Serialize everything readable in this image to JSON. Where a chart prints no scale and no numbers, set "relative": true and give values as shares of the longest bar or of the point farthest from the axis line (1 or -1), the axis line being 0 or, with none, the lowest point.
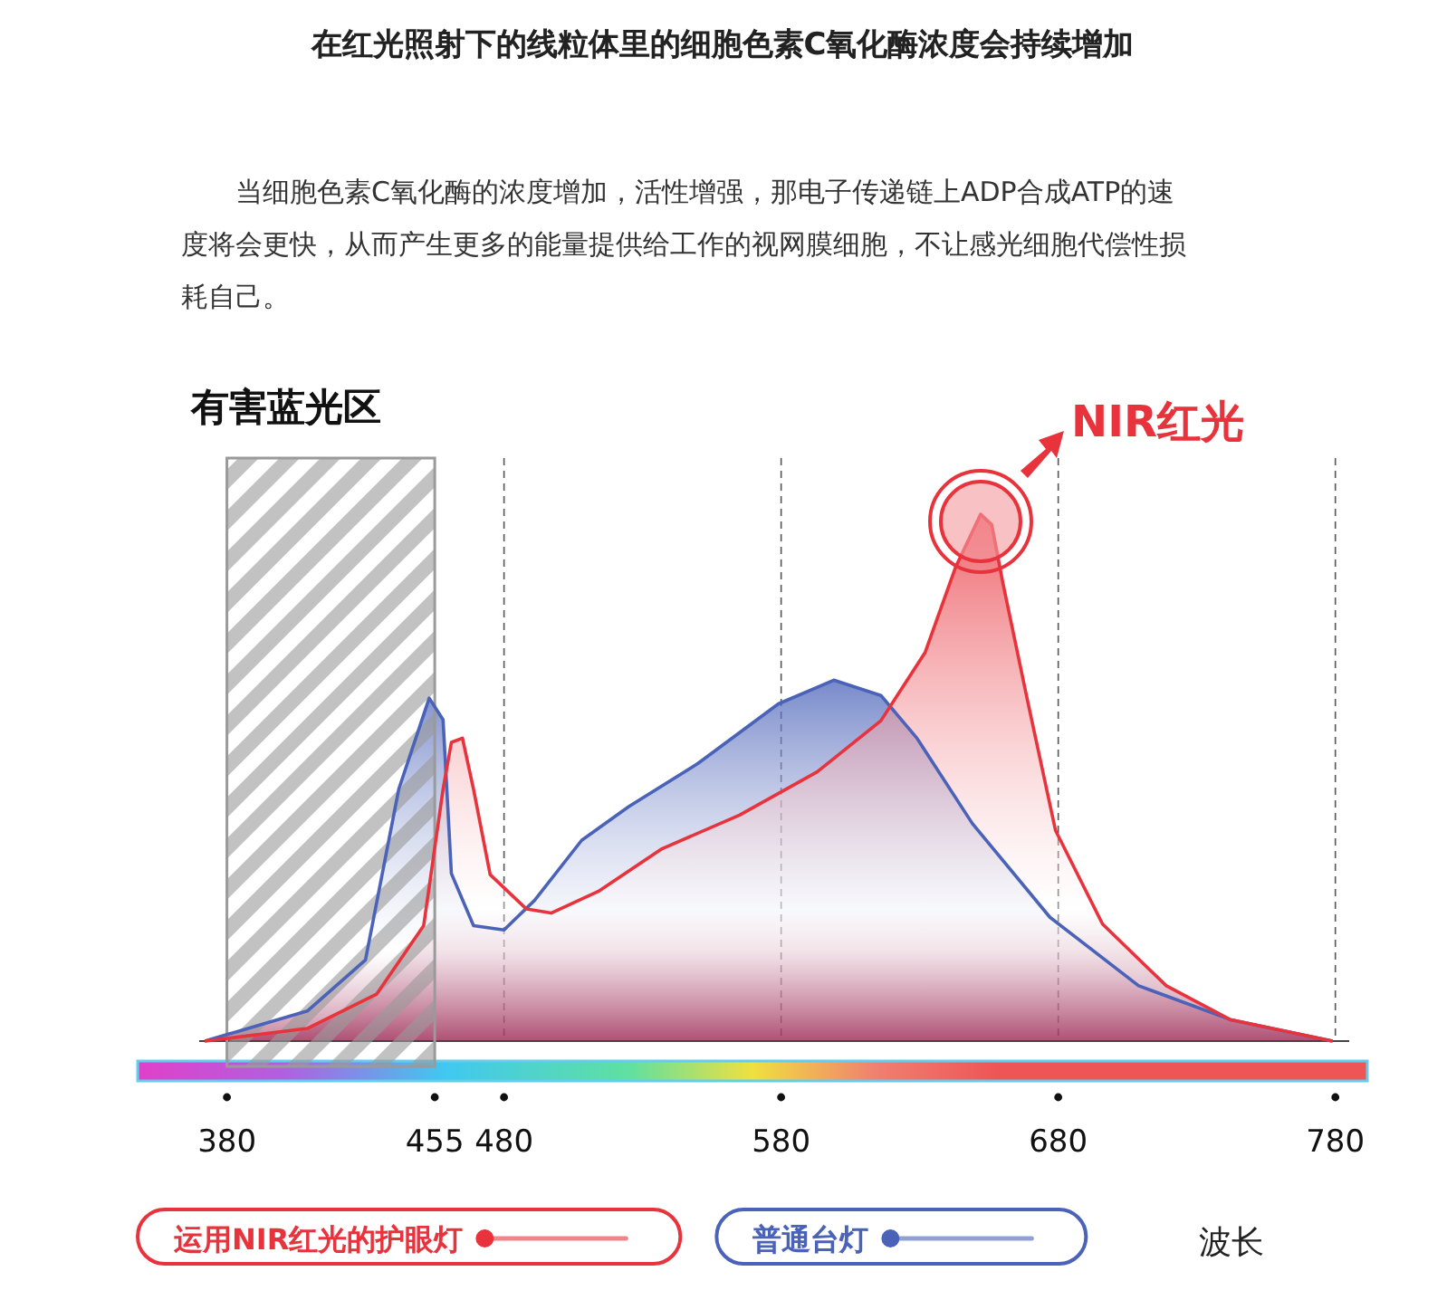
{
  "chart_data": {
    "type": "area",
    "title": "在红光照射下的线粒体里的细胞色素C氧化酶浓度会持续增加",
    "subtitle": "当细胞色素C氧化酶的浓度增加，活性增强，那电子传递链上ADP合成ATP的速度将会更快，从而产生更多的能量提供给工作的视网膜细胞，不让感光细胞代偿性损耗自己。",
    "xlabel": "波长",
    "relative": true,
    "xlim": [
      370,
      785
    ],
    "xticks": [
      380,
      455,
      480,
      580,
      680,
      780
    ],
    "grid": "x",
    "legend": "bottom",
    "line_style": "solid",
    "marker": "none",
    "bands": [
      {
        "axis": "x",
        "from": 380,
        "to": 455,
        "label": "有害蓝光区",
        "color": "#9a9a9a"
      }
    ],
    "annotations": [
      {
        "text": "NIR红光",
        "x": 652,
        "y": 1
      }
    ],
    "series": [
      {
        "name": "运用NIR红光的护眼灯",
        "color": "#e8333c",
        "x": [
          372,
          409,
          434,
          451,
          458,
          461,
          465,
          469,
          475,
          488,
          497,
          514,
          537,
          565,
          593,
          616,
          632,
          643,
          652,
          656,
          660,
          669,
          679,
          696,
          719,
          742,
          779
        ],
        "values": [
          0,
          0.024,
          0.089,
          0.219,
          0.478,
          0.567,
          0.575,
          0.478,
          0.316,
          0.251,
          0.243,
          0.284,
          0.365,
          0.429,
          0.511,
          0.608,
          0.738,
          0.9,
          1,
          0.98,
          0.87,
          0.644,
          0.4,
          0.222,
          0.105,
          0.041,
          0
        ]
      },
      {
        "name": "普通台灯",
        "color": "#4a62b8",
        "x": [
          372,
          409,
          430,
          442,
          453,
          458,
          461,
          469,
          480,
          491,
          508,
          525,
          550,
          579,
          599,
          616,
          629,
          649,
          677,
          709,
          742,
          779
        ],
        "values": [
          0,
          0.057,
          0.154,
          0.478,
          0.651,
          0.61,
          0.318,
          0.219,
          0.211,
          0.267,
          0.381,
          0.445,
          0.527,
          0.64,
          0.685,
          0.656,
          0.575,
          0.413,
          0.235,
          0.105,
          0.041,
          0
        ]
      }
    ]
  }
}
